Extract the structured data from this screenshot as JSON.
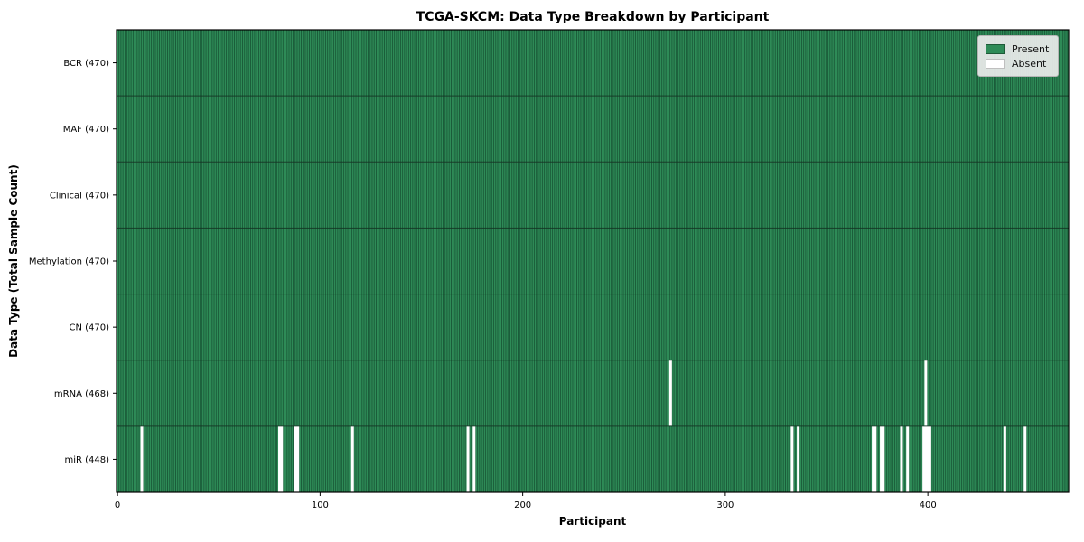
{
  "chart_data": {
    "type": "heatmap",
    "title": "TCGA-SKCM: Data Type Breakdown by Participant",
    "xlabel": "Participant",
    "ylabel": "Data Type (Total Sample Count)",
    "n_participants": 470,
    "xlim": [
      -0.5,
      469.5
    ],
    "x_ticks": [
      "0",
      "100",
      "200",
      "300",
      "400"
    ],
    "x_tick_values": [
      0,
      100,
      200,
      300,
      400
    ],
    "grid": false,
    "legend": {
      "position": "upper right",
      "items": [
        {
          "label": "Present",
          "color": "#2e8b57"
        },
        {
          "label": "Absent",
          "color": "#ffffff"
        }
      ]
    },
    "colors": {
      "present": "#2e8b57",
      "bar_edge": "#175434",
      "absent": "#ffffff",
      "row_divider": "#102f1f",
      "axis": "#000000",
      "legend_bg": "#ebebeb"
    },
    "rows": [
      {
        "name": "BCR",
        "label": "BCR (470)",
        "present_count": 470,
        "absent_participants": []
      },
      {
        "name": "MAF",
        "label": "MAF (470)",
        "present_count": 470,
        "absent_participants": []
      },
      {
        "name": "Clinical",
        "label": "Clinical (470)",
        "present_count": 470,
        "absent_participants": []
      },
      {
        "name": "Methylation",
        "label": "Methylation (470)",
        "present_count": 470,
        "absent_participants": []
      },
      {
        "name": "CN",
        "label": "CN (470)",
        "present_count": 470,
        "absent_participants": []
      },
      {
        "name": "mRNA",
        "label": "mRNA (468)",
        "present_count": 468,
        "absent_participants": [
          273,
          399
        ]
      },
      {
        "name": "miR",
        "label": "miR (448)",
        "present_count": 448,
        "absent_participants": [
          12,
          80,
          81,
          88,
          89,
          116,
          173,
          176,
          333,
          336,
          373,
          374,
          377,
          378,
          387,
          390,
          398,
          399,
          400,
          401,
          438,
          448
        ]
      }
    ]
  }
}
